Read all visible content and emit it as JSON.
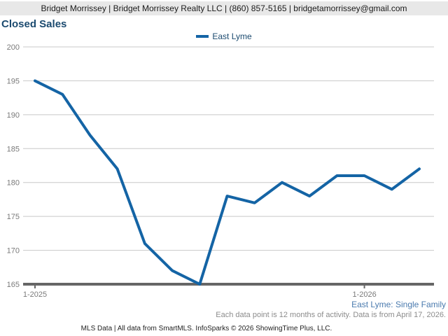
{
  "header": {
    "text": "Bridget Morrissey | Bridget Morrissey Realty LLC | (860) 857-5165 | bridgetamorrissey@gmail.com"
  },
  "title": "Closed Sales",
  "legend": {
    "label": "East Lyme"
  },
  "chart_data": {
    "type": "line",
    "title": "Closed Sales",
    "x": [
      "1-2025",
      "2-2025",
      "3-2025",
      "4-2025",
      "5-2025",
      "6-2025",
      "7-2025",
      "8-2025",
      "9-2025",
      "10-2025",
      "11-2025",
      "12-2025",
      "1-2026",
      "2-2026",
      "3-2026"
    ],
    "series": [
      {
        "name": "East Lyme",
        "color": "#1464a5",
        "values": [
          195,
          193,
          187,
          182,
          171,
          167,
          165,
          178,
          177,
          180,
          178,
          181,
          181,
          179,
          182
        ]
      }
    ],
    "ylim": [
      165,
      200
    ],
    "yticks": [
      165,
      170,
      175,
      180,
      185,
      190,
      195,
      200
    ],
    "visible_xticks": [
      {
        "label": "1-2025",
        "index": 0
      },
      {
        "label": "1-2026",
        "index": 12
      }
    ],
    "grid": true,
    "legend_position": "top-center",
    "xlabel": "",
    "ylabel": ""
  },
  "footnotes": {
    "series_scope": "East Lyme: Single Family",
    "data_note": "Each data point is 12 months of activity. Data is from April 17, 2026.",
    "attribution": "MLS Data | All data from SmartMLS. InfoSparks © 2026 ShowingTime Plus, LLC."
  },
  "colors": {
    "header_background": "#e8e8e8",
    "title_text": "#1b4a6f",
    "series_line": "#1464a5",
    "grid_line": "#c8c8c8",
    "axis_line": "#666666",
    "axis_label": "#7a7a7a",
    "scope_text": "#4a7aae",
    "note_text": "#8c8c8c"
  }
}
